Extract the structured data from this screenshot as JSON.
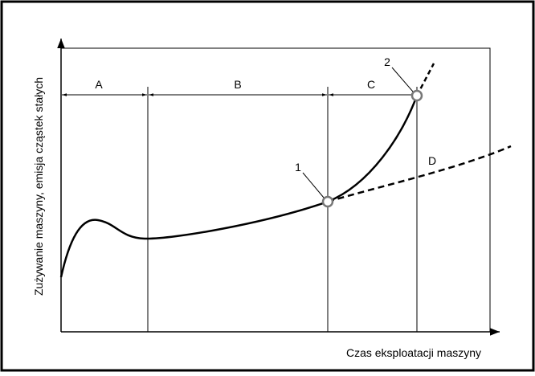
{
  "axes": {
    "y_label": "Zużywanie maszyny, emisja cząstek stałych",
    "x_label": "Czas eksploatacji maszyny"
  },
  "regions": [
    "A",
    "B",
    "C"
  ],
  "curve_labels": {
    "extrapolated": "D"
  },
  "points": [
    "1",
    "2"
  ]
}
